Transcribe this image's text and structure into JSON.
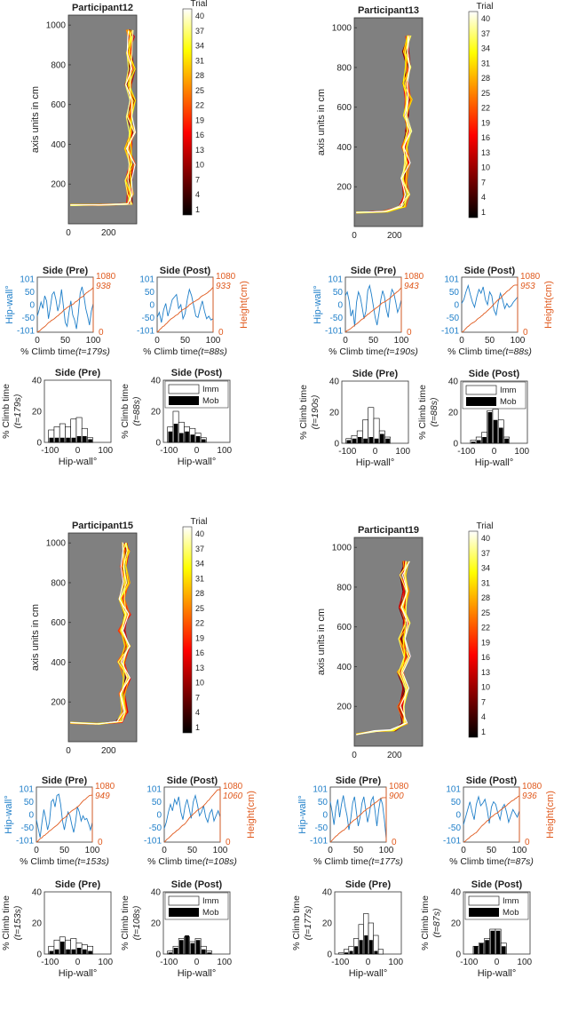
{
  "colors": {
    "hip": "#1f7fc9",
    "height": "#e05a1e",
    "wall": "#808080",
    "imm_fill": "#ffffff",
    "mob_fill": "#000000"
  },
  "labels": {
    "trial": "Trial",
    "path_ylabel": "axis units in cm",
    "hipwall_ylabel": "Hip-wall°",
    "height_ylabel": "Height(cm)",
    "climbtime_xlabel": "% Climb time",
    "hist_xlabel": "Hip-wall°",
    "hist_ylabel": "% Climb time",
    "legend_imm": "Imm",
    "legend_mob": "Mob",
    "pre_title": "Side (Pre)",
    "post_title": "Side (Post)"
  },
  "colorbar_ticks": [
    "40",
    "37",
    "34",
    "31",
    "28",
    "25",
    "22",
    "19",
    "16",
    "13",
    "10",
    "7",
    "4",
    "1"
  ],
  "chart_data": [
    {
      "participant": "Participant12",
      "type": "line",
      "path": {
        "xlim": [
          0,
          340
        ],
        "ylim": [
          0,
          1050
        ],
        "xticks": [
          "0",
          "200"
        ],
        "yticks": [
          "200",
          "400",
          "600",
          "800",
          "1000"
        ],
        "centerline": [
          [
            10,
            95
          ],
          [
            150,
            95
          ],
          [
            300,
            100
          ],
          [
            310,
            150
          ],
          [
            300,
            220
          ],
          [
            318,
            300
          ],
          [
            298,
            380
          ],
          [
            320,
            460
          ],
          [
            305,
            540
          ],
          [
            322,
            620
          ],
          [
            300,
            700
          ],
          [
            315,
            780
          ],
          [
            300,
            860
          ],
          [
            312,
            940
          ],
          [
            305,
            975
          ]
        ]
      },
      "time_series": [
        {
          "title": "Side (Pre)",
          "duration": "(t=179s)",
          "final_height": "938",
          "hip": [
            -45,
            -20,
            10,
            -15,
            35,
            15,
            -55,
            -10,
            40,
            50,
            20,
            -25,
            5,
            60,
            -5,
            -70,
            -85,
            -30,
            15,
            -40,
            -60,
            -95,
            -35,
            45,
            70,
            35,
            -15,
            -45,
            -80,
            -25,
            5
          ]
        },
        {
          "title": "Side (Post)",
          "duration": "(t=88s)",
          "final_height": "933",
          "hip": [
            -50,
            -30,
            -70,
            -20,
            5,
            -45,
            -15,
            20,
            30,
            40,
            -15,
            0,
            -55,
            -35,
            20,
            60,
            35,
            -5,
            -45,
            -50,
            -15,
            15,
            -25,
            -55,
            -45,
            -60,
            -55
          ]
        }
      ],
      "histograms": [
        {
          "title": "Side (Pre)",
          "duration": "(t=179s)",
          "ylim": [
            0,
            40
          ],
          "imm": [
            8,
            10,
            12,
            10,
            15,
            16,
            9,
            3
          ],
          "mob": [
            3,
            3,
            3,
            3,
            3,
            4,
            4,
            2
          ]
        },
        {
          "title": "Side (Post)",
          "duration": "(t=88s)",
          "ylim": [
            0,
            40
          ],
          "imm": [
            10,
            20,
            13,
            10,
            9,
            6,
            3,
            0
          ],
          "mob": [
            7,
            12,
            6,
            7,
            5,
            4,
            2,
            0
          ]
        }
      ]
    },
    {
      "participant": "Participant13",
      "type": "line",
      "path": {
        "xlim": [
          0,
          340
        ],
        "ylim": [
          0,
          1050
        ],
        "xticks": [
          "0",
          "200"
        ],
        "yticks": [
          "200",
          "400",
          "600",
          "800",
          "1000"
        ],
        "centerline": [
          [
            10,
            70
          ],
          [
            150,
            75
          ],
          [
            240,
            100
          ],
          [
            262,
            160
          ],
          [
            250,
            240
          ],
          [
            268,
            320
          ],
          [
            252,
            400
          ],
          [
            270,
            480
          ],
          [
            254,
            560
          ],
          [
            270,
            640
          ],
          [
            255,
            720
          ],
          [
            268,
            800
          ],
          [
            255,
            880
          ],
          [
            265,
            960
          ]
        ]
      },
      "time_series": [
        {
          "title": "Side (Pre)",
          "duration": "(t=190s)",
          "final_height": "943",
          "hip": [
            35,
            50,
            15,
            -45,
            -20,
            -85,
            10,
            50,
            30,
            -10,
            -55,
            -25,
            55,
            75,
            40,
            -5,
            -50,
            -80,
            -35,
            20,
            55,
            30,
            -20,
            -50,
            25,
            60,
            45,
            10,
            -30,
            -10,
            20
          ]
        },
        {
          "title": "Side (Post)",
          "duration": "(t=88s)",
          "final_height": "953",
          "hip": [
            5,
            20,
            50,
            75,
            40,
            10,
            -10,
            30,
            60,
            45,
            70,
            20,
            0,
            50,
            35,
            -20,
            -40,
            10,
            45,
            20,
            -15,
            5,
            -10,
            -5,
            10,
            20,
            30
          ]
        }
      ],
      "histograms": [
        {
          "title": "Side (Pre)",
          "duration": "(t=190s)",
          "ylim": [
            0,
            40
          ],
          "imm": [
            3,
            5,
            8,
            15,
            23,
            16,
            8,
            4
          ],
          "mob": [
            2,
            3,
            4,
            3,
            4,
            3,
            6,
            3
          ]
        },
        {
          "title": "Side (Post)",
          "duration": "(t=88s)",
          "ylim": [
            0,
            40
          ],
          "imm": [
            0,
            2,
            4,
            7,
            21,
            22,
            15,
            4
          ],
          "mob": [
            0,
            1,
            2,
            4,
            20,
            15,
            10,
            3
          ]
        }
      ]
    },
    {
      "participant": "Participant15",
      "type": "line",
      "path": {
        "xlim": [
          0,
          340
        ],
        "ylim": [
          0,
          1050
        ],
        "xticks": [
          "0",
          "200"
        ],
        "yticks": [
          "200",
          "400",
          "600",
          "800",
          "1000"
        ],
        "centerline": [
          [
            10,
            95
          ],
          [
            150,
            90
          ],
          [
            250,
            100
          ],
          [
            282,
            150
          ],
          [
            270,
            240
          ],
          [
            292,
            320
          ],
          [
            262,
            400
          ],
          [
            290,
            480
          ],
          [
            265,
            560
          ],
          [
            292,
            640
          ],
          [
            268,
            720
          ],
          [
            290,
            800
          ],
          [
            272,
            880
          ],
          [
            288,
            960
          ],
          [
            280,
            1000
          ]
        ]
      },
      "time_series": [
        {
          "title": "Side (Pre)",
          "duration": "(t=153s)",
          "final_height": "949",
          "hip": [
            -20,
            -55,
            -90,
            -30,
            20,
            -15,
            -60,
            -30,
            50,
            60,
            30,
            75,
            80,
            40,
            -25,
            -60,
            -20,
            10,
            -5,
            -40,
            -70,
            -30,
            30,
            10,
            -25,
            -5,
            -20,
            -15,
            -35,
            -60,
            -30
          ]
        },
        {
          "title": "Side (Post)",
          "duration": "(t=108s)",
          "final_height": "1060",
          "hip": [
            -55,
            -30,
            10,
            40,
            15,
            60,
            40,
            70,
            10,
            -20,
            30,
            60,
            25,
            -15,
            50,
            75,
            40,
            -5,
            10,
            35,
            -10,
            -30,
            5,
            20,
            -25,
            -5,
            15,
            -10
          ]
        }
      ],
      "histograms": [
        {
          "title": "Side (Pre)",
          "duration": "(t=153s)",
          "ylim": [
            0,
            40
          ],
          "imm": [
            5,
            9,
            11,
            9,
            10,
            7,
            6,
            5
          ],
          "mob": [
            2,
            3,
            8,
            3,
            3,
            4,
            3,
            2
          ]
        },
        {
          "title": "Side (Post)",
          "duration": "(t=108s)",
          "ylim": [
            0,
            40
          ],
          "imm": [
            2,
            5,
            10,
            11,
            8,
            10,
            5,
            2
          ],
          "mob": [
            1,
            4,
            9,
            12,
            7,
            9,
            3,
            1
          ]
        }
      ]
    },
    {
      "participant": "Participant19",
      "type": "line",
      "path": {
        "xlim": [
          0,
          340
        ],
        "ylim": [
          0,
          1050
        ],
        "xticks": [
          "0",
          "200"
        ],
        "yticks": [
          "200",
          "400",
          "600",
          "800",
          "1000"
        ],
        "centerline": [
          [
            10,
            60
          ],
          [
            100,
            75
          ],
          [
            190,
            80
          ],
          [
            255,
            115
          ],
          [
            230,
            200
          ],
          [
            258,
            290
          ],
          [
            232,
            370
          ],
          [
            262,
            450
          ],
          [
            238,
            540
          ],
          [
            262,
            620
          ],
          [
            240,
            700
          ],
          [
            260,
            780
          ],
          [
            242,
            860
          ],
          [
            258,
            930
          ]
        ]
      },
      "time_series": [
        {
          "title": "Side (Pre)",
          "duration": "(t=177s)",
          "final_height": "900",
          "hip": [
            50,
            10,
            -40,
            25,
            60,
            -10,
            40,
            75,
            30,
            -5,
            -60,
            -15,
            45,
            70,
            10,
            -45,
            -10,
            45,
            70,
            20,
            -30,
            5,
            55,
            70,
            15,
            -45,
            20,
            65,
            40,
            -20,
            -95
          ]
        },
        {
          "title": "Side (Post)",
          "duration": "(t=87s)",
          "final_height": "936",
          "hip": [
            -40,
            -10,
            20,
            50,
            10,
            -20,
            40,
            70,
            35,
            45,
            60,
            20,
            -35,
            30,
            50,
            40,
            5,
            -20,
            25,
            40,
            10,
            -30,
            -5,
            20,
            5,
            -10,
            15
          ]
        }
      ],
      "histograms": [
        {
          "title": "Side (Pre)",
          "duration": "(t=177s)",
          "ylim": [
            0,
            40
          ],
          "imm": [
            1,
            3,
            5,
            10,
            19,
            26,
            20,
            12,
            3
          ],
          "mob": [
            0,
            1,
            2,
            5,
            9,
            12,
            9,
            2,
            0
          ]
        },
        {
          "title": "Side (Post)",
          "duration": "(t=87s)",
          "ylim": [
            0,
            40
          ],
          "imm": [
            0,
            5,
            7,
            10,
            16,
            16,
            7,
            0
          ],
          "mob": [
            0,
            5,
            7,
            9,
            15,
            15,
            5,
            0
          ]
        }
      ]
    }
  ]
}
